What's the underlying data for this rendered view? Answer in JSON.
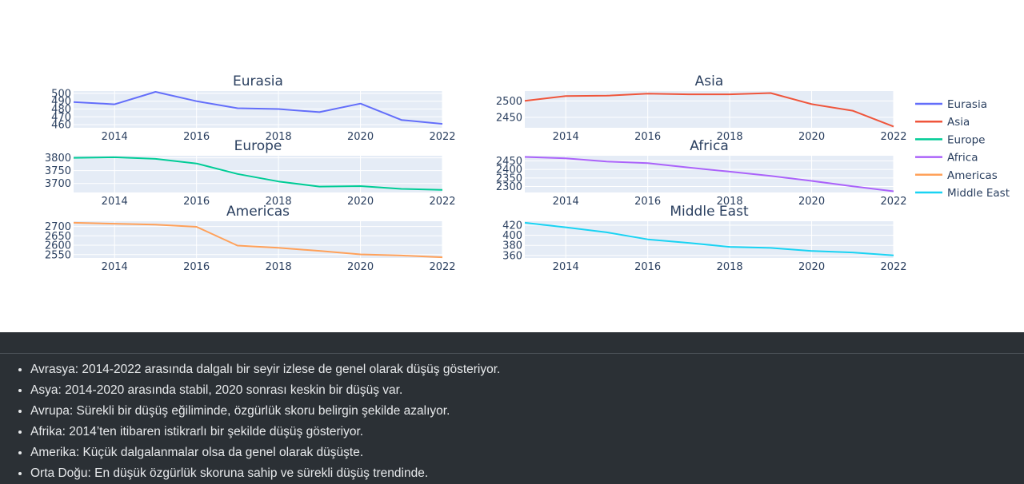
{
  "chart_data": {
    "type": "line",
    "layout": "subplots-3x2",
    "legend_placement": "right",
    "grid": true,
    "x": [
      2013,
      2014,
      2015,
      2016,
      2017,
      2018,
      2019,
      2020,
      2021,
      2022
    ],
    "x_ticks": [
      2014,
      2016,
      2018,
      2020,
      2022
    ],
    "series": [
      {
        "name": "Eurasia",
        "color": "#636efa",
        "ylim": [
          456,
          503
        ],
        "yticks": [
          460,
          470,
          480,
          490,
          500
        ],
        "values": [
          489,
          486,
          502,
          490,
          481,
          480,
          476,
          487,
          466,
          461
        ]
      },
      {
        "name": "Asia",
        "color": "#ef553b",
        "ylim": [
          2418,
          2530
        ],
        "yticks": [
          2450,
          2500
        ],
        "values": [
          2500,
          2515,
          2516,
          2522,
          2520,
          2520,
          2524,
          2490,
          2470,
          2422
        ]
      },
      {
        "name": "Europe",
        "color": "#00cc96",
        "ylim": [
          3665,
          3808
        ],
        "yticks": [
          3700,
          3750,
          3800
        ],
        "values": [
          3800,
          3802,
          3796,
          3778,
          3737,
          3708,
          3688,
          3690,
          3679,
          3675
        ]
      },
      {
        "name": "Africa",
        "color": "#ab63fa",
        "ylim": [
          2265,
          2480
        ],
        "yticks": [
          2300,
          2350,
          2400,
          2450
        ],
        "values": [
          2473,
          2465,
          2446,
          2437,
          2411,
          2387,
          2362,
          2333,
          2301,
          2272
        ]
      },
      {
        "name": "Americas",
        "color": "#ffa15a",
        "ylim": [
          2532,
          2728
        ],
        "yticks": [
          2550,
          2600,
          2650,
          2700
        ],
        "values": [
          2720,
          2715,
          2710,
          2698,
          2598,
          2586,
          2570,
          2551,
          2545,
          2536
        ]
      },
      {
        "name": "Middle East",
        "color": "#19d3f3",
        "ylim": [
          355,
          428
        ],
        "yticks": [
          360,
          380,
          400,
          420
        ],
        "values": [
          425,
          416,
          406,
          392,
          385,
          377,
          375,
          369,
          366,
          360
        ]
      }
    ]
  },
  "notes": [
    "Avrasya: 2014-2022 arasında dalgalı bir seyir izlese de genel olarak düşüş gösteriyor.",
    "Asya: 2014-2020 arasında stabil, 2020 sonrası keskin bir düşüş var.",
    "Avrupa: Sürekli bir düşüş eğiliminde, özgürlük skoru belirgin şekilde azalıyor.",
    "Afrika: 2014’ten itibaren istikrarlı bir şekilde düşüş gösteriyor.",
    "Amerika: Küçük dalgalanmalar olsa da genel olarak düşüşte.",
    "Orta Doğu: En düşük özgürlük skoruna sahip ve sürekli düşüş trendinde."
  ]
}
